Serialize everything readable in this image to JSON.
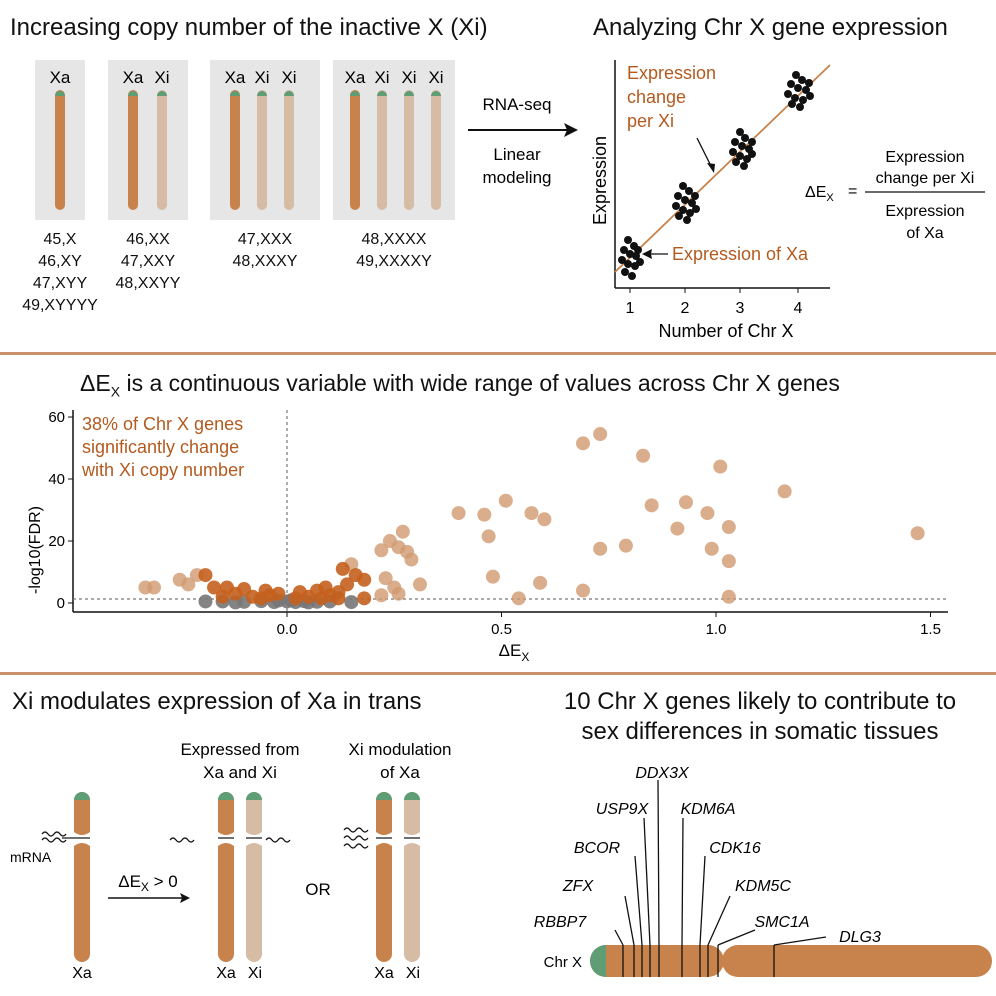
{
  "colors": {
    "xa": "#c8834c",
    "xi": "#d6bca5",
    "telomere": "#5f9d74",
    "accent": "#b35a1f",
    "rule": "#c8916a",
    "boxbg": "#e6e6e6",
    "grey_point": "#777777",
    "orange_point": "#c4601e",
    "light_point": "#d19a6f"
  },
  "top_left": {
    "title": "Increasing copy number of the inactive X (Xi)",
    "panels": [
      {
        "labels": [
          "Xa"
        ],
        "karyotypes": [
          "45,X",
          "46,XY",
          "47,XYY",
          "49,XYYYY"
        ]
      },
      {
        "labels": [
          "Xa",
          "Xi"
        ],
        "karyotypes": [
          "46,XX",
          "47,XXY",
          "48,XXYY"
        ]
      },
      {
        "labels": [
          "Xa",
          "Xi",
          "Xi"
        ],
        "karyotypes": [
          "47,XXX",
          "48,XXXY"
        ]
      },
      {
        "labels": [
          "Xa",
          "Xi",
          "Xi",
          "Xi"
        ],
        "karyotypes": [
          "48,XXXX",
          "49,XXXXY"
        ]
      }
    ]
  },
  "arrow": {
    "line1": "RNA-seq",
    "line2": "Linear",
    "line3": "modeling"
  },
  "top_right": {
    "title": "Analyzing Chr X gene expression",
    "ylabel": "Expression",
    "xlabel": "Number of Chr X",
    "xticks": [
      "1",
      "2",
      "3",
      "4"
    ],
    "annot_change_1": "Expression",
    "annot_change_2": "change",
    "annot_change_3": "per Xi",
    "annot_xa": "Expression of Xa",
    "formula_lhs": "ΔE",
    "formula_sub": "X",
    "formula_eq": "=",
    "formula_num_1": "Expression",
    "formula_num_2": "change per Xi",
    "formula_den_1": "Expression",
    "formula_den_2": "of Xa"
  },
  "middle": {
    "title_pre": "ΔE",
    "title_sub": "X",
    "title_post": " is a continuous variable with wide range of values across Chr X genes",
    "annot_1": "38% of Chr X genes",
    "annot_2": "significantly change",
    "annot_3": "with Xi copy number",
    "ylabel": "-log10(FDR)",
    "xlabel": "ΔE",
    "xlabel_sub": "X"
  },
  "chart_data": {
    "type": "scatter",
    "xlabel": "ΔEX",
    "ylabel": "-log10(FDR)",
    "xlim": [
      -0.5,
      1.55
    ],
    "ylim": [
      -2,
      62
    ],
    "xticks": [
      "0.0",
      "0.5",
      "1.0",
      "1.5"
    ],
    "xtick_values": [
      0,
      0.5,
      1.0,
      1.5
    ],
    "yticks": [
      "0",
      "20",
      "40",
      "60"
    ],
    "ytick_values": [
      0,
      20,
      40,
      60
    ],
    "vline_x": 0,
    "hline_y": 1.3,
    "series": [
      {
        "group": "significant",
        "points": [
          [
            0.69,
            51.5
          ],
          [
            0.73,
            54.5
          ],
          [
            0.83,
            47.5
          ],
          [
            1.16,
            36
          ],
          [
            1.47,
            22.5
          ],
          [
            1.01,
            44
          ],
          [
            0.51,
            33
          ],
          [
            0.4,
            29
          ],
          [
            0.46,
            28.5
          ],
          [
            0.57,
            29
          ],
          [
            0.6,
            27
          ],
          [
            0.85,
            31.5
          ],
          [
            0.93,
            32.5
          ],
          [
            0.98,
            29
          ],
          [
            1.03,
            24.5
          ],
          [
            0.91,
            24
          ],
          [
            0.47,
            21.5
          ],
          [
            0.73,
            17.5
          ],
          [
            0.79,
            18.5
          ],
          [
            0.99,
            17.5
          ],
          [
            1.03,
            13.5
          ],
          [
            0.27,
            23
          ],
          [
            0.24,
            20
          ],
          [
            0.26,
            18
          ],
          [
            0.22,
            17
          ],
          [
            0.28,
            16.5
          ],
          [
            0.29,
            14
          ],
          [
            0.15,
            12.5
          ],
          [
            0.13,
            11
          ],
          [
            0.16,
            9
          ],
          [
            0.23,
            8
          ],
          [
            0.18,
            7.5
          ],
          [
            0.48,
            8.5
          ],
          [
            0.59,
            6.5
          ],
          [
            0.31,
            6
          ],
          [
            0.14,
            6
          ],
          [
            0.25,
            5
          ],
          [
            0.09,
            5
          ],
          [
            0.07,
            4
          ],
          [
            0.12,
            3.5
          ],
          [
            0.69,
            4
          ],
          [
            0.54,
            1.5
          ],
          [
            0.22,
            2.5
          ],
          [
            0.26,
            3
          ],
          [
            0.18,
            1.5
          ],
          [
            1.03,
            2
          ],
          [
            -0.25,
            7.5
          ],
          [
            -0.21,
            9
          ],
          [
            -0.19,
            9
          ],
          [
            -0.23,
            6
          ],
          [
            -0.17,
            5
          ],
          [
            -0.14,
            5
          ],
          [
            -0.1,
            4.5
          ],
          [
            -0.31,
            5
          ],
          [
            -0.33,
            5
          ],
          [
            -0.05,
            4
          ],
          [
            -0.02,
            3
          ],
          [
            0.03,
            3.5
          ],
          [
            -0.12,
            3
          ],
          [
            0.05,
            2
          ],
          [
            0.1,
            2.5
          ],
          [
            -0.08,
            2
          ],
          [
            -0.04,
            2.5
          ],
          [
            0.02,
            1.5
          ],
          [
            0.12,
            1.5
          ],
          [
            -0.15,
            2
          ],
          [
            -0.06,
            1.5
          ],
          [
            0.08,
            1.5
          ]
        ]
      },
      {
        "group": "not significant",
        "points": [
          [
            -0.19,
            0.5
          ],
          [
            -0.15,
            0.5
          ],
          [
            -0.1,
            0.4
          ],
          [
            -0.06,
            0.6
          ],
          [
            -0.03,
            0.3
          ],
          [
            0.0,
            0.5
          ],
          [
            0.02,
            0.3
          ],
          [
            0.04,
            0.6
          ],
          [
            0.07,
            0.4
          ],
          [
            0.1,
            0.5
          ],
          [
            0.15,
            0.3
          ],
          [
            -0.12,
            0.2
          ],
          [
            0.05,
            0.2
          ],
          [
            -0.02,
            0.8
          ],
          [
            0.01,
            0.9
          ]
        ]
      }
    ]
  },
  "bottom_left": {
    "title": "Xi modulates expression of Xa in trans",
    "label_mrna": "mRNA",
    "label_xa_single": "Xa",
    "arrow_pre": "ΔE",
    "arrow_sub": "X",
    "arrow_post": " > 0",
    "expressed_1": "Expressed from",
    "expressed_2": "Xa and Xi",
    "modulation_1": "Xi modulation",
    "modulation_2": "of Xa",
    "or": "OR",
    "label_xa": "Xa",
    "label_xi": "Xi"
  },
  "bottom_right": {
    "title_1": "10 Chr X genes likely to contribute to",
    "title_2": "sex differences in somatic tissues",
    "chr_label": "Chr X",
    "genes": [
      "DDX3X",
      "USP9X",
      "KDM6A",
      "BCOR",
      "CDK16",
      "ZFX",
      "KDM5C",
      "RBBP7",
      "SMC1A",
      "DLG3"
    ]
  }
}
